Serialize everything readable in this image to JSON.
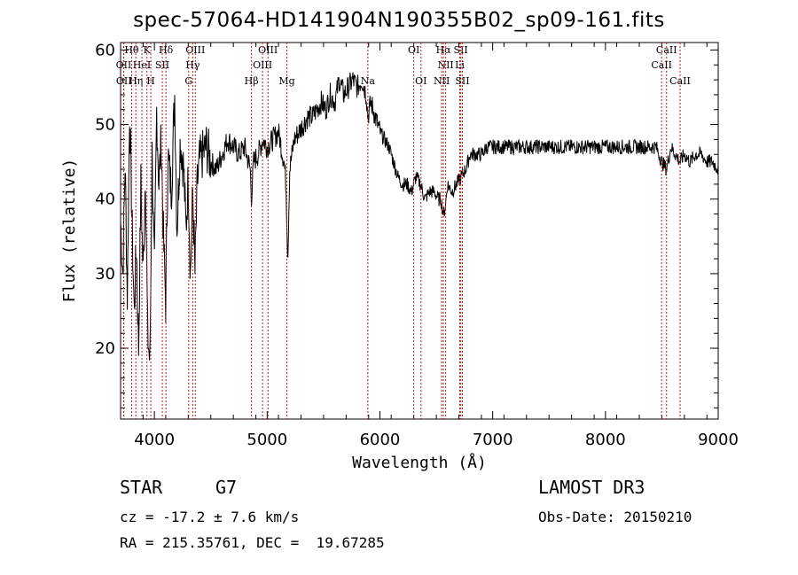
{
  "title": "spec-57064-HD141904N190355B02_sp09-161.fits",
  "info": {
    "obj_class": "STAR",
    "obj_type": "G7",
    "survey": "LAMOST DR3",
    "cz": "cz = -17.2 ± 7.6 km/s",
    "obs_date": "Obs-Date: 20150210",
    "radec": "RA = 215.35761, DEC =  19.67285"
  },
  "chart_data": {
    "type": "line",
    "xlabel": "Wavelength (Å)",
    "ylabel": "Flux (relative)",
    "xlim": [
      3700,
      9000
    ],
    "ylim": [
      10.5,
      61
    ],
    "xticks": [
      4000,
      5000,
      6000,
      7000,
      8000,
      9000
    ],
    "yticks": [
      20,
      30,
      40,
      50,
      60
    ],
    "spectrum": {
      "wavelength": [
        3700,
        3720,
        3740,
        3760,
        3780,
        3800,
        3820,
        3840,
        3860,
        3880,
        3900,
        3920,
        3940,
        3960,
        3980,
        4000,
        4020,
        4040,
        4060,
        4080,
        4100,
        4120,
        4150,
        4180,
        4200,
        4230,
        4260,
        4280,
        4300,
        4320,
        4340,
        4360,
        4380,
        4400,
        4430,
        4460,
        4500,
        4550,
        4600,
        4650,
        4700,
        4750,
        4800,
        4850,
        4861,
        4880,
        4920,
        4960,
        5000,
        5050,
        5100,
        5150,
        5167,
        5183,
        5200,
        5240,
        5280,
        5320,
        5360,
        5400,
        5440,
        5480,
        5520,
        5560,
        5600,
        5640,
        5680,
        5720,
        5760,
        5800,
        5840,
        5880,
        5893,
        5920,
        5960,
        6000,
        6040,
        6080,
        6120,
        6160,
        6200,
        6240,
        6280,
        6320,
        6360,
        6400,
        6440,
        6480,
        6520,
        6540,
        6563,
        6580,
        6600,
        6640,
        6680,
        6720,
        6760,
        6800,
        6850,
        6900,
        6950,
        7000,
        7100,
        7200,
        7300,
        7400,
        7500,
        7600,
        7700,
        7800,
        7900,
        8000,
        8100,
        8200,
        8300,
        8400,
        8450,
        8500,
        8542,
        8580,
        8620,
        8662,
        8700,
        8750,
        8800,
        8850,
        8900,
        8950,
        9000
      ],
      "flux": [
        37,
        30,
        45,
        27,
        52,
        38,
        25,
        34,
        20,
        42,
        30,
        44,
        22,
        18,
        46,
        30,
        52,
        42,
        48,
        35,
        26,
        46,
        41,
        54,
        36,
        48,
        44,
        36,
        43,
        30,
        41,
        30,
        42,
        45,
        46,
        47,
        45,
        44,
        46,
        48,
        47,
        46,
        47,
        44,
        40,
        45,
        46,
        48,
        47,
        48,
        49,
        45,
        42,
        32,
        44,
        48,
        49,
        50,
        51,
        51,
        52,
        53,
        52,
        54,
        53,
        56,
        54,
        55,
        56,
        55,
        56,
        54,
        51,
        53,
        51,
        49,
        48,
        47,
        45,
        43,
        42,
        42,
        41,
        43,
        42,
        40,
        41,
        41,
        40,
        40,
        38,
        39,
        42,
        41,
        42,
        43,
        44,
        46,
        46,
        46,
        47,
        47,
        47,
        47,
        47,
        47,
        47,
        47,
        47,
        47,
        47,
        47,
        47,
        47,
        47,
        47,
        47,
        45,
        44,
        47,
        46,
        45,
        46,
        45,
        46,
        46,
        45,
        45,
        44
      ]
    },
    "lines": [
      {
        "label": "Hθ",
        "x": 3798,
        "row": 0
      },
      {
        "label": "K",
        "x": 3934,
        "row": 0
      },
      {
        "label": "Hδ",
        "x": 4102,
        "row": 0
      },
      {
        "label": "OIII",
        "x": 4363,
        "row": 0
      },
      {
        "label": "OIII",
        "x": 5007,
        "row": 0
      },
      {
        "label": "OI",
        "x": 6300,
        "row": 0
      },
      {
        "label": "Hα",
        "x": 6563,
        "row": 0
      },
      {
        "label": "SII",
        "x": 6717,
        "row": 0
      },
      {
        "label": "CaII",
        "x": 8542,
        "row": 0
      },
      {
        "label": "OII",
        "x": 3727,
        "row": 1
      },
      {
        "label": "HeI",
        "x": 3889,
        "row": 1
      },
      {
        "label": "SII",
        "x": 4070,
        "row": 1
      },
      {
        "label": "Hγ",
        "x": 4340,
        "row": 1
      },
      {
        "label": "OIII",
        "x": 4959,
        "row": 1
      },
      {
        "label": "NII",
        "x": 6583,
        "row": 1
      },
      {
        "label": "Li",
        "x": 6708,
        "row": 1
      },
      {
        "label": "CaII",
        "x": 8498,
        "row": 1
      },
      {
        "label": "OII",
        "x": 3729,
        "row": 2
      },
      {
        "label": "Hη",
        "x": 3835,
        "row": 2
      },
      {
        "label": "H",
        "x": 3968,
        "row": 2
      },
      {
        "label": "G",
        "x": 4304,
        "row": 2
      },
      {
        "label": "Hβ",
        "x": 4861,
        "row": 2
      },
      {
        "label": "Mg",
        "x": 5175,
        "row": 2
      },
      {
        "label": "Na",
        "x": 5893,
        "row": 2
      },
      {
        "label": "OI",
        "x": 6364,
        "row": 2
      },
      {
        "label": "NII",
        "x": 6548,
        "row": 2
      },
      {
        "label": "SII",
        "x": 6731,
        "row": 2
      },
      {
        "label": "CaII",
        "x": 8662,
        "row": 2
      }
    ],
    "colors": {
      "spectrum": "#000000",
      "lines": "#b22222"
    }
  }
}
